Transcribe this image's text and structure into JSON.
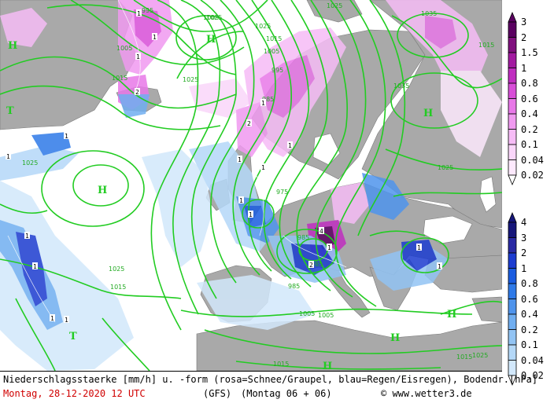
{
  "footer": {
    "title": "Niederschlagsstaerke [mm/h] u. -form (rosa=Schnee/Graupel, blau=Regen/Eisregen), Bodendr.[hPa]",
    "date": "Montag, 28-12-2020  12 UTC",
    "model": "(GFS)",
    "run": "(Montag 06 + 06)",
    "copyright": "© www.wetter3.de"
  },
  "legend_snow": {
    "unit": "mm/h",
    "labels": [
      "3",
      "2",
      "1.5",
      "1",
      "0.8",
      "0.6",
      "0.4",
      "0.2",
      "0.1",
      "0.04",
      "0.02"
    ],
    "colors": [
      "#5a0060",
      "#80107e",
      "#a21aa0",
      "#c02ec0",
      "#d84ed8",
      "#e878e8",
      "#f09af0",
      "#f6bcf6",
      "#fad6fa",
      "#fde9fd",
      "#ffffff"
    ]
  },
  "legend_rain": {
    "unit": "mm/h",
    "labels": [
      "4",
      "3",
      "2",
      "1",
      "0.8",
      "0.6",
      "0.4",
      "0.2",
      "0.1",
      "0.04",
      "0.02"
    ],
    "colors": [
      "#16167a",
      "#2a2aa4",
      "#1c3cd0",
      "#1a5ce0",
      "#2f7ae8",
      "#4f94ec",
      "#70aef0",
      "#92c4f4",
      "#b4d8f8",
      "#d2e8fb",
      "#ffffff"
    ]
  },
  "isobars": [
    "995",
    "1005",
    "1025",
    "1015",
    "1015",
    "1005",
    "995",
    "1025",
    "1025",
    "1035",
    "1025",
    "1015",
    "1035",
    "985",
    "975",
    "1025",
    "985",
    "985",
    "985",
    "1025",
    "1005",
    "1005",
    "1015",
    "1015",
    "1015",
    "1005",
    "1025",
    "1025"
  ],
  "pressure_centers": [
    "H",
    "H",
    "H",
    "H",
    "H",
    "H",
    "H",
    "T",
    "T"
  ],
  "precip_max_labels": [
    "1",
    "1",
    "1",
    "2",
    "1",
    "1",
    "1",
    "2",
    "1",
    "1",
    "1",
    "1",
    "4",
    "1",
    "2",
    "1",
    "1",
    "1",
    "1",
    "1",
    "1",
    "1"
  ]
}
